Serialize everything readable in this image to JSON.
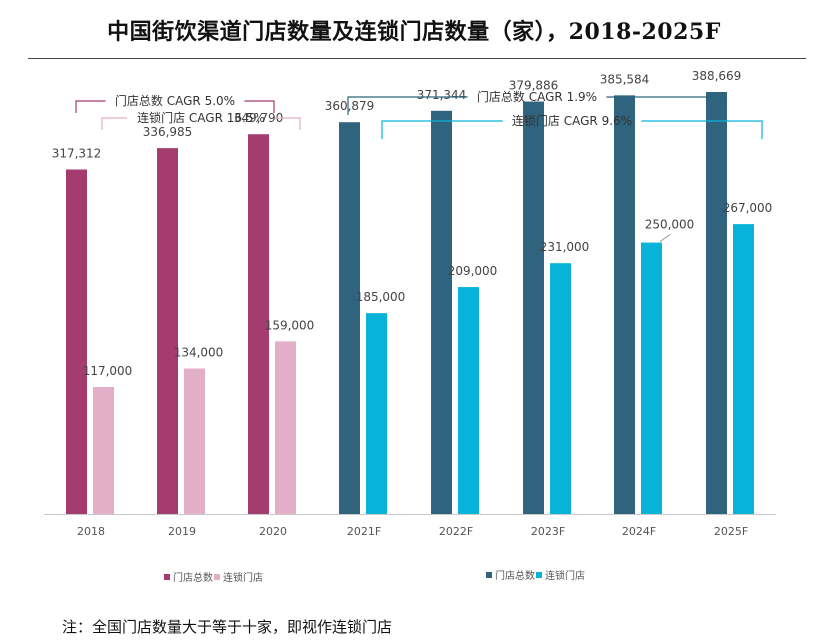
{
  "title": "中国街饮渠道门店数量及连锁门店数量（家），2018-2025F",
  "note": "注：全国门店数量大于等于十家，即视作连锁门店",
  "chart_data": {
    "type": "bar",
    "categories": [
      "2018",
      "2019",
      "2020",
      "2021F",
      "2022F",
      "2023F",
      "2024F",
      "2025F"
    ],
    "series": [
      {
        "name": "门店总数",
        "values": [
          317312,
          336985,
          349790,
          360879,
          371344,
          379886,
          385584,
          388669
        ],
        "labels": [
          "317,312",
          "336,985",
          "349,790",
          "360,879",
          "371,344",
          "379,886",
          "385,584",
          "388,669"
        ]
      },
      {
        "name": "连锁门店",
        "values": [
          117000,
          134000,
          159000,
          185000,
          209000,
          231000,
          250000,
          267000
        ],
        "labels": [
          "117,000",
          "134,000",
          "159,000",
          "185,000",
          "209,000",
          "231,000",
          "250,000",
          "267,000"
        ]
      }
    ],
    "colors": {
      "hist_total": "#a43c70",
      "hist_chain": "#e3aec7",
      "fcst_total": "#2f637e",
      "fcst_chain": "#08b3d9"
    },
    "ylim": [
      0,
      420000
    ],
    "grid": false,
    "legends": [
      {
        "items": [
          {
            "name": "门店总数",
            "color": "#a43c70"
          },
          {
            "name": "连锁门店",
            "color": "#e3aec7"
          }
        ]
      },
      {
        "items": [
          {
            "name": "门店总数",
            "color": "#2f637e"
          },
          {
            "name": "连锁门店",
            "color": "#08b3d9"
          }
        ]
      }
    ],
    "annotations": [
      {
        "text": "门店总数 CAGR 5.0%",
        "color": "#a43c70"
      },
      {
        "text": "连锁门店 CAGR 16.5%",
        "color": "#e3aec7"
      },
      {
        "text": "门店总数 CAGR 1.9%",
        "color": "#2f637e"
      },
      {
        "text": "连锁门店 CAGR 9.6%",
        "color": "#08b3d9"
      }
    ]
  }
}
